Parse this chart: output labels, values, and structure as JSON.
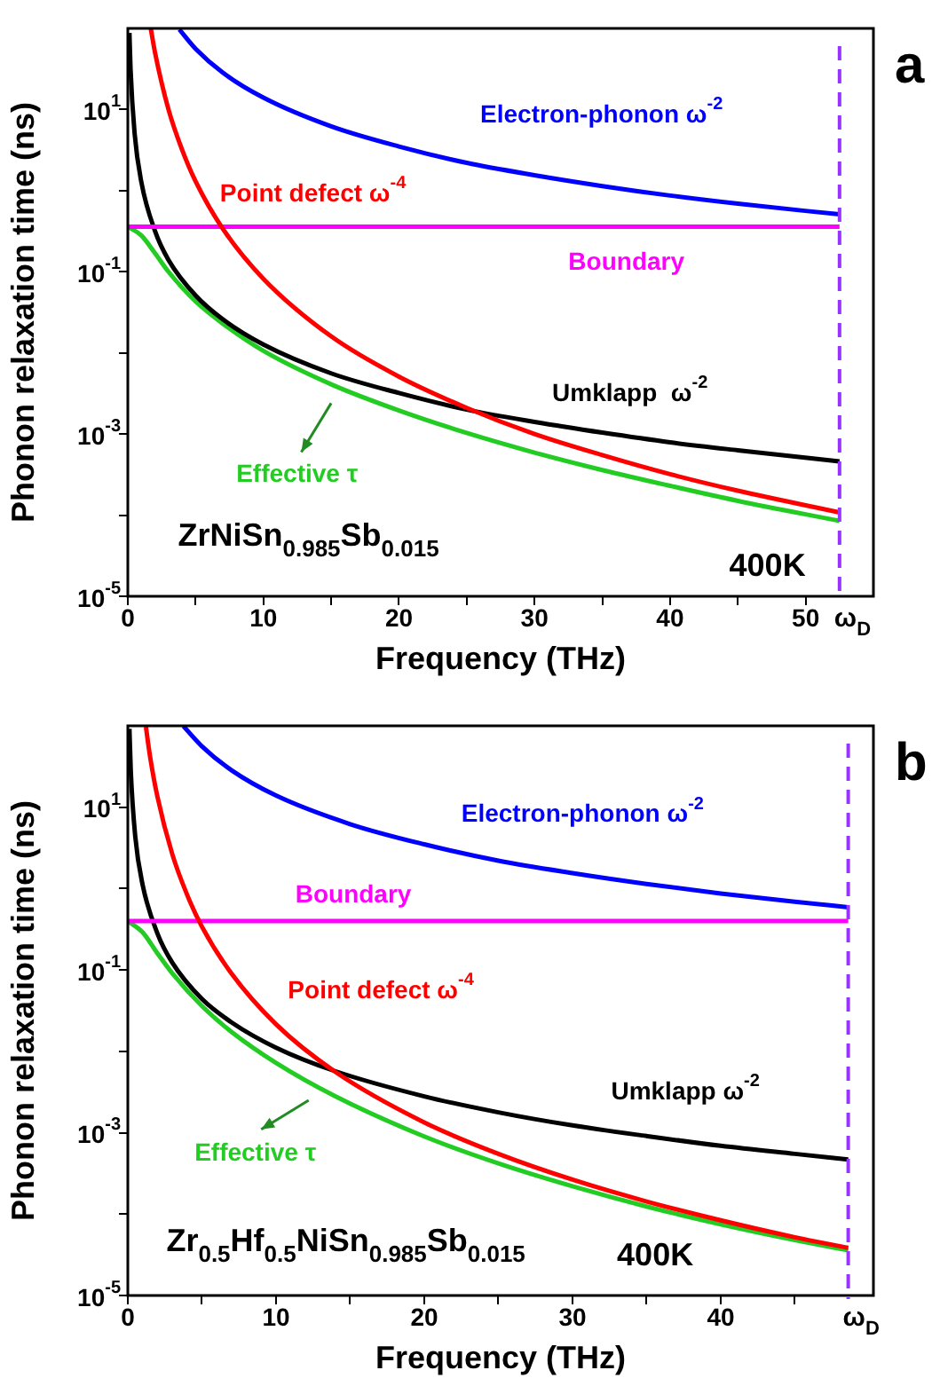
{
  "chart_data": [
    {
      "type": "line",
      "title": "a",
      "xlabel": "Frequency (THz)",
      "ylabel": "Phonon relaxation time (ns)",
      "log": "y",
      "marker": "none",
      "line_style": "solid",
      "xlim": [
        0,
        55
      ],
      "xticks": [
        0,
        {
          "value": 5,
          "label": null
        },
        10,
        {
          "value": 15,
          "label": null
        },
        20,
        {
          "value": 25,
          "label": null
        },
        30,
        {
          "value": 35,
          "label": null
        },
        40,
        {
          "value": 45,
          "label": null
        },
        50
      ],
      "ylim": [
        1e-05,
        100
      ],
      "yticks": [
        {
          "value": 1e-05,
          "label": "10$^{-5}$"
        },
        {
          "value": 0.0001,
          "label": null
        },
        {
          "value": 0.001,
          "label": "10$^{-3}$"
        },
        {
          "value": 0.01,
          "label": null
        },
        {
          "value": 0.1,
          "label": "10$^{-1}$"
        },
        {
          "value": 1,
          "label": null
        },
        {
          "value": 10,
          "label": "10$^{1}$"
        }
      ],
      "ref_lines": [
        {
          "axis": "x",
          "value": 52.5,
          "label": "ω$_{D}$",
          "color": "#9933ff",
          "line_style": "dashed"
        }
      ],
      "annotations": [
        "ZrNiSn$_{0.985}$Sb$_{0.015}$",
        "400K"
      ],
      "series": [
        {
          "name": "Electron-phonon ω$^{-2}$",
          "color": "#0000ff",
          "x": [
            3.8,
            5,
            7,
            10,
            15,
            20,
            25,
            30,
            35,
            40,
            45,
            52.5
          ],
          "values": [
            97,
            56,
            28.5,
            14,
            6.2,
            3.5,
            2.2,
            1.55,
            1.14,
            0.87,
            0.69,
            0.51
          ]
        },
        {
          "name": "Point defect ω$^{-4}$",
          "color": "#ff0000",
          "x": [
            1.7,
            2,
            3,
            4,
            5,
            7,
            10,
            15,
            20,
            25,
            30,
            35,
            40,
            45,
            52.5
          ],
          "values": [
            98,
            51,
            10,
            3.2,
            1.3,
            0.34,
            0.082,
            0.016,
            0.0051,
            0.0021,
            0.001,
            0.00055,
            0.00032,
            0.0002,
            0.000108
          ]
        },
        {
          "name": "Boundary",
          "color": "#ff00ff",
          "x": [
            0,
            52.5
          ],
          "values": [
            0.36,
            0.36
          ]
        },
        {
          "name": "Umklapp  ω$^{-2}$",
          "color": "#000000",
          "x": [
            0.12,
            0.2,
            0.5,
            1,
            2,
            3,
            5,
            7,
            10,
            15,
            20,
            25,
            30,
            35,
            40,
            45,
            52.5
          ],
          "values": [
            88,
            32,
            5.1,
            1.27,
            0.32,
            0.14,
            0.051,
            0.026,
            0.0127,
            0.0056,
            0.0032,
            0.002,
            0.00141,
            0.00104,
            0.00079,
            0.00063,
            0.00046
          ]
        },
        {
          "name": "Effective τ",
          "color": "#22cc22",
          "x": [
            0,
            1,
            2,
            3,
            5,
            7,
            10,
            15,
            20,
            25,
            30,
            35,
            40,
            45,
            52.5
          ],
          "values": [
            0.36,
            0.28,
            0.17,
            0.1,
            0.043,
            0.023,
            0.0106,
            0.0041,
            0.00195,
            0.00103,
            0.00059,
            0.00036,
            0.00023,
            0.00015,
            8.5e-05
          ]
        }
      ]
    },
    {
      "type": "line",
      "title": "b",
      "xlabel": "Frequency (THz)",
      "ylabel": "Phonon relaxation time (ns)",
      "log": "y",
      "marker": "none",
      "line_style": "solid",
      "xlim": [
        0,
        50.3
      ],
      "xticks": [
        0,
        {
          "value": 5,
          "label": null
        },
        10,
        {
          "value": 15,
          "label": null
        },
        20,
        {
          "value": 25,
          "label": null
        },
        30,
        {
          "value": 35,
          "label": null
        },
        40,
        {
          "value": 45,
          "label": null
        }
      ],
      "ylim": [
        1e-05,
        100
      ],
      "yticks": [
        {
          "value": 1e-05,
          "label": "10$^{-5}$"
        },
        {
          "value": 0.0001,
          "label": null
        },
        {
          "value": 0.001,
          "label": "10$^{-3}$"
        },
        {
          "value": 0.01,
          "label": null
        },
        {
          "value": 0.1,
          "label": "10$^{-1}$"
        },
        {
          "value": 1,
          "label": null
        },
        {
          "value": 10,
          "label": "10$^{1}$"
        }
      ],
      "ref_lines": [
        {
          "axis": "x",
          "value": 48.6,
          "label": "ω$_{D}$",
          "color": "#9933ff",
          "line_style": "dashed"
        }
      ],
      "annotations": [
        "Zr$_{0.5}$Hf$_{0.5}$NiSn$_{0.985}$Sb$_{0.015}$",
        "400K"
      ],
      "series": [
        {
          "name": "Electron-phonon ω$^{-2}$",
          "color": "#0000ff",
          "x": [
            3.75,
            5,
            7,
            10,
            15,
            20,
            25,
            30,
            35,
            40,
            45,
            48.6
          ],
          "values": [
            99,
            56,
            28.4,
            13.9,
            6.2,
            3.5,
            2.2,
            1.55,
            1.14,
            0.87,
            0.69,
            0.59
          ]
        },
        {
          "name": "Point defect ω$^{-4}$",
          "color": "#ff0000",
          "x": [
            1.22,
            1.5,
            2,
            3,
            4,
            5,
            7,
            10,
            14,
            20,
            25,
            30,
            35,
            40,
            45,
            48.6
          ],
          "values": [
            97,
            42,
            13.4,
            2.65,
            0.84,
            0.34,
            0.09,
            0.0215,
            0.0056,
            0.00134,
            0.00055,
            0.000265,
            0.000143,
            8.4e-05,
            5.2e-05,
            3.85e-05
          ]
        },
        {
          "name": "Boundary",
          "color": "#ff00ff",
          "x": [
            0,
            48.6
          ],
          "values": [
            0.4,
            0.4
          ]
        },
        {
          "name": "Umklapp ω$^{-2}$",
          "color": "#000000",
          "x": [
            0.11,
            0.2,
            0.5,
            1,
            2,
            3,
            5,
            7,
            10,
            14,
            20,
            25,
            30,
            35,
            40,
            45,
            48.6
          ],
          "values": [
            92,
            28,
            4.4,
            1.11,
            0.28,
            0.123,
            0.044,
            0.0227,
            0.0111,
            0.0057,
            0.0028,
            0.00178,
            0.00123,
            0.00091,
            0.00069,
            0.00055,
            0.00047
          ]
        },
        {
          "name": "Effective τ",
          "color": "#22cc22",
          "x": [
            0,
            1,
            2,
            3,
            5,
            7,
            10,
            14,
            20,
            25,
            30,
            35,
            40,
            45,
            48.6
          ],
          "values": [
            0.4,
            0.29,
            0.16,
            0.091,
            0.036,
            0.0173,
            0.0072,
            0.0028,
            0.0009,
            0.00042,
            0.00022,
            0.000124,
            7.5e-05,
            4.8e-05,
            3.6e-05
          ]
        }
      ]
    }
  ]
}
